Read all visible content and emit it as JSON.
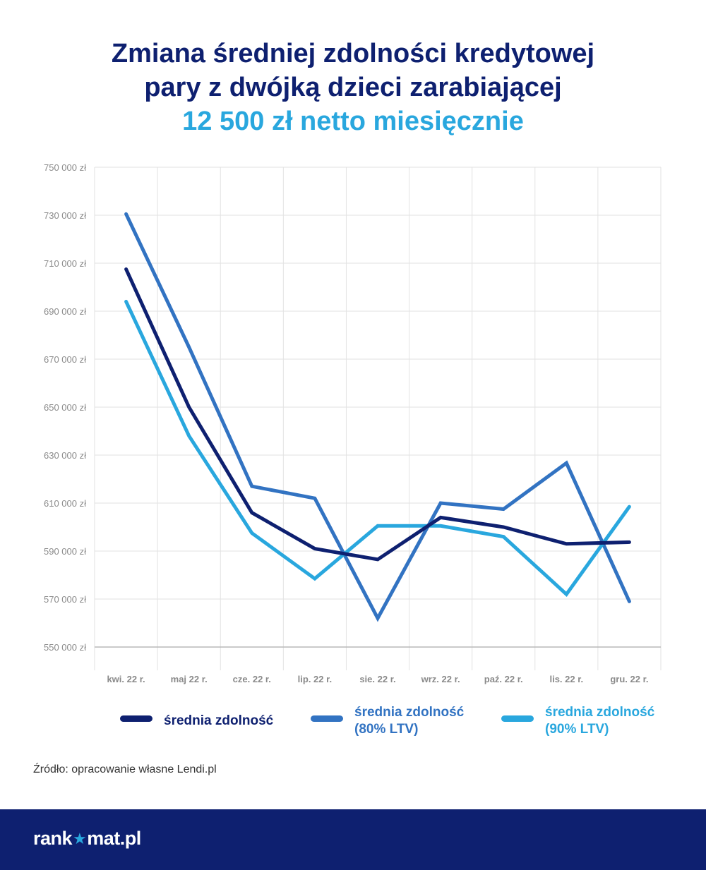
{
  "title": {
    "line1": "Zmiana średniej zdolności kredytowej",
    "line2": "pary z dwójką dzieci zarabiającej",
    "line3": "12 500 zł netto miesięcznie"
  },
  "source": "Źródło: opracowanie własne Lendi.pl",
  "footer": {
    "logo_before": "rank",
    "logo_icon": "star-icon",
    "logo_after": "mat.pl"
  },
  "colors": {
    "title": "#0e2070",
    "accent": "#29a7de",
    "series_dark": "#0e2070",
    "series_mid": "#3273c2",
    "series_light": "#29a7de",
    "grid": "#e2e2e2",
    "footer_bg": "#0e2070"
  },
  "chart_data": {
    "type": "line",
    "title": "Zmiana średniej zdolności kredytowej pary z dwójką dzieci zarabiającej 12 500 zł netto miesięcznie",
    "xlabel": "",
    "ylabel": "",
    "categories": [
      "kwi. 22 r.",
      "maj 22 r.",
      "cze. 22  r.",
      "lip. 22 r.",
      "sie. 22 r.",
      "wrz. 22 r.",
      "paź. 22 r.",
      "lis. 22 r.",
      "gru. 22 r."
    ],
    "ylim": [
      550000,
      750000
    ],
    "yticks": [
      550000,
      570000,
      590000,
      610000,
      630000,
      650000,
      670000,
      690000,
      710000,
      730000,
      750000
    ],
    "ytick_labels": [
      "550 000 zł",
      "570 000 zł",
      "590 000 zł",
      "610 000 zł",
      "630 000 zł",
      "650 000 zł",
      "670 000 zł",
      "690 000 zł",
      "710 000 zł",
      "730 000 zł",
      "750 000 zł"
    ],
    "grid": true,
    "legend_position": "bottom",
    "series": [
      {
        "name": "średnia zdolność",
        "color": "#0e2070",
        "values": [
          707500,
          650000,
          606000,
          591000,
          586500,
          604000,
          600000,
          593000,
          593700
        ]
      },
      {
        "name": "średnia zdolność\n(80% LTV)",
        "color": "#3273c2",
        "values": [
          730500,
          675000,
          617000,
          612000,
          562000,
          610000,
          607500,
          626700,
          569000
        ]
      },
      {
        "name": "średnia zdolność\n(90% LTV)",
        "color": "#29a7de",
        "values": [
          694000,
          638000,
          597500,
          578500,
          600500,
          600500,
          596000,
          572000,
          608500
        ]
      }
    ]
  }
}
